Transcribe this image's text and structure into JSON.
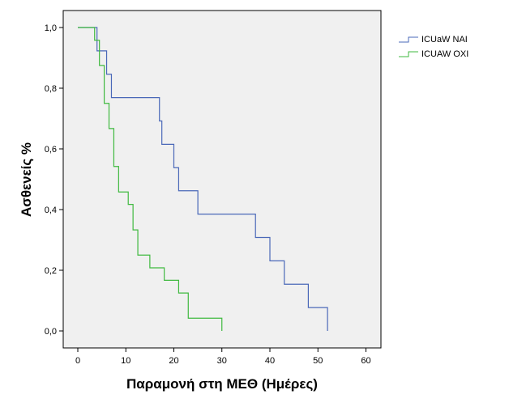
{
  "chart_data": {
    "type": "line",
    "subtype": "kaplan-meier step curve",
    "xlabel": "Παραμονή στη ΜΕΘ (Ημέρες)",
    "ylabel": "Ασθενείς %",
    "xlim": [
      0,
      60
    ],
    "ylim": [
      0,
      1
    ],
    "x_ticks": [
      "0",
      "10",
      "20",
      "30",
      "40",
      "50",
      "60"
    ],
    "y_ticks": [
      "0,0",
      "0,2",
      "0,4",
      "0,6",
      "0,8",
      "1,0"
    ],
    "grid": false,
    "legend_position": "top-right, outside plot",
    "plot_background": "#f0f0f0",
    "series": [
      {
        "name": "ICUaW NAI",
        "color": "#4a68b8",
        "x": [
          0,
          4,
          6,
          7,
          17,
          17.5,
          20,
          21,
          25,
          37,
          40,
          43,
          48,
          52
        ],
        "y": [
          1.0,
          0.923,
          0.846,
          0.769,
          0.692,
          0.615,
          0.538,
          0.462,
          0.385,
          0.308,
          0.231,
          0.154,
          0.077,
          0.0
        ]
      },
      {
        "name": "ICUAW OXI",
        "color": "#3fb93f",
        "x": [
          0,
          3.5,
          4.5,
          5.5,
          6.5,
          7.5,
          8.5,
          10.5,
          11.5,
          12.5,
          15,
          18,
          21,
          23,
          30
        ],
        "y": [
          1.0,
          0.958,
          0.875,
          0.75,
          0.667,
          0.542,
          0.458,
          0.417,
          0.333,
          0.25,
          0.208,
          0.167,
          0.125,
          0.042,
          0.0
        ]
      }
    ]
  }
}
